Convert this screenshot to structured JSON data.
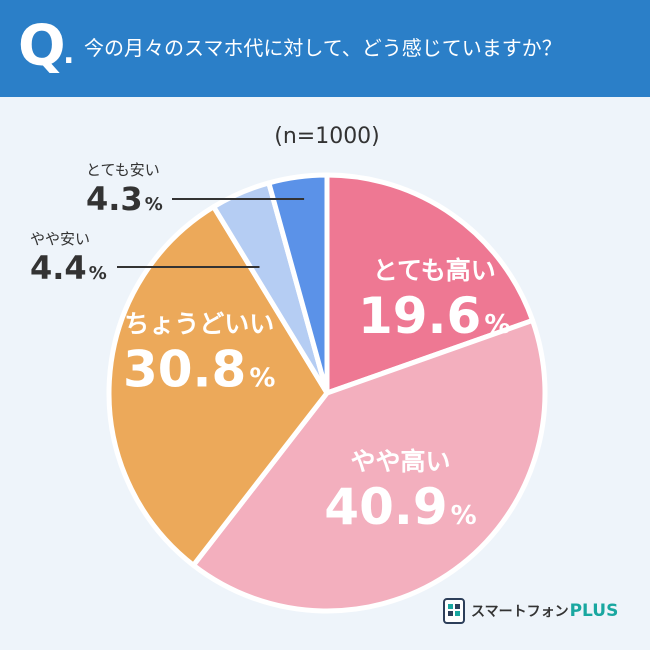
{
  "header": {
    "q_mark": "Q",
    "q_dot": ".",
    "question": "今の月々のスマホ代に対して、どう感じていますか？",
    "background": "#2b7fc8"
  },
  "chart_data": {
    "type": "pie",
    "subtitle": "(n=1000)",
    "slices": [
      {
        "label": "とても高い",
        "value": 19.6,
        "display": "19.6",
        "unit": "%",
        "color": "#ee7893"
      },
      {
        "label": "やや高い",
        "value": 40.9,
        "display": "40.9",
        "unit": "%",
        "color": "#f3afbe"
      },
      {
        "label": "ちょうどいい",
        "value": 30.8,
        "display": "30.8",
        "unit": "%",
        "color": "#eca95a"
      },
      {
        "label": "やや安い",
        "value": 4.4,
        "display": "4.4",
        "unit": "%",
        "color": "#b5cdf3"
      },
      {
        "label": "とても安い",
        "value": 4.3,
        "display": "4.3",
        "unit": "%",
        "color": "#5b92e8"
      }
    ],
    "start_angle": "12 o'clock",
    "direction": "clockwise"
  },
  "logo": {
    "text": "スマートフォン",
    "plus": "PLUS"
  }
}
